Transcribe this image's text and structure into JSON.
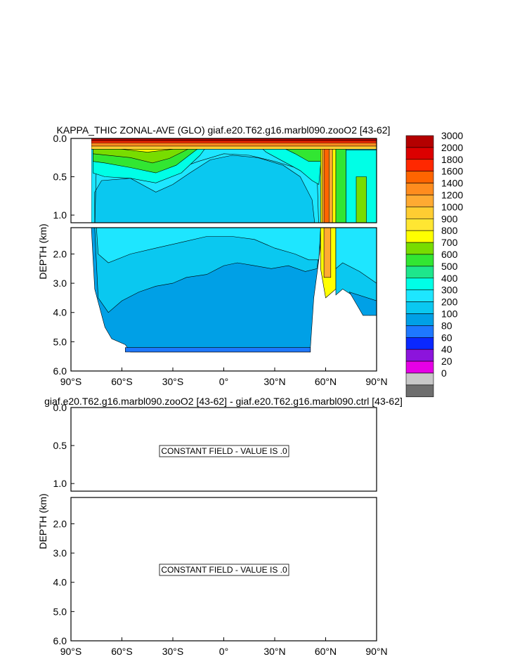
{
  "chart_data": [
    {
      "type": "contour",
      "title": "KAPPA_THIC ZONAL-AVE (GLO) giaf.e20.T62.g16.marbl090.zooO2 [43-62]",
      "ylabel": "DEPTH (km)",
      "xlim": [
        -90,
        90
      ],
      "ylim_upper_km": [
        0,
        1.1
      ],
      "ylim_lower_km": [
        1.1,
        6.0
      ],
      "x_ticks": [
        "90°S",
        "60°S",
        "30°S",
        "0°",
        "30°N",
        "60°N",
        "90°N"
      ],
      "y_ticks_upper": [
        "0.0",
        "0.5",
        "1.0"
      ],
      "y_ticks_lower": [
        "2.0",
        "3.0",
        "4.0",
        "5.0",
        "6.0"
      ],
      "colorbar": {
        "levels": [
          "3000",
          "2000",
          "1800",
          "1600",
          "1400",
          "1200",
          "1000",
          "900",
          "800",
          "700",
          "600",
          "500",
          "400",
          "300",
          "200",
          "100",
          "80",
          "60",
          "40",
          "20",
          "0"
        ],
        "colors": [
          "#b40000",
          "#dc0000",
          "#ff2800",
          "#ff6400",
          "#ff8c1e",
          "#ffaa32",
          "#ffcd32",
          "#ffe632",
          "#ffff00",
          "#78dc00",
          "#32e632",
          "#1ee68c",
          "#00ffe6",
          "#1ee6ff",
          "#0ac8f0",
          "#00a0e6",
          "#1e78ff",
          "#0a28ff",
          "#8c14dc",
          "#e600e6",
          "#c8c8c8",
          "#6e6e6e"
        ]
      },
      "regions": [
        {
          "lat_range": [
            -78,
            90
          ],
          "depth_range_km": [
            0,
            0.1
          ],
          "band": "1600-3000"
        },
        {
          "lat_range": [
            -78,
            -8
          ],
          "depth_range_km": [
            0.1,
            0.5
          ],
          "band": "600-800"
        },
        {
          "lat_range": [
            -78,
            55
          ],
          "depth_range_km": [
            0.3,
            2.5
          ],
          "band": "300-400"
        },
        {
          "lat_range": [
            -70,
            52
          ],
          "depth_range_km": [
            2.5,
            5.3
          ],
          "band": "200-300"
        },
        {
          "lat_range": [
            58,
            66
          ],
          "depth_range_km": [
            0,
            3.5
          ],
          "band": "400-1600"
        },
        {
          "lat_range": [
            66,
            90
          ],
          "depth_range_km": [
            2.5,
            4.0
          ],
          "band": "200-300"
        }
      ]
    },
    {
      "type": "contour",
      "title": "giaf.e20.T62.g16.marbl090.zooO2 [43-62] - giaf.e20.T62.g16.marbl090.ctrl [43-62]",
      "ylabel": "DEPTH (km)",
      "xlim": [
        -90,
        90
      ],
      "ylim_upper_km": [
        0,
        1.1
      ],
      "ylim_lower_km": [
        1.1,
        6.0
      ],
      "x_ticks": [
        "90°S",
        "60°S",
        "30°S",
        "0°",
        "30°N",
        "60°N",
        "90°N"
      ],
      "y_ticks_upper": [
        "0.0",
        "0.5",
        "1.0"
      ],
      "y_ticks_lower": [
        "2.0",
        "3.0",
        "4.0",
        "5.0",
        "6.0"
      ],
      "annotations": [
        "CONSTANT FIELD - VALUE IS .0",
        "CONSTANT FIELD - VALUE IS .0"
      ]
    }
  ]
}
